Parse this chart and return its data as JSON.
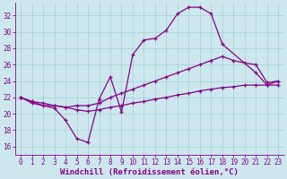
{
  "xlabel": "Windchill (Refroidissement éolien,°C)",
  "bg_color": "#cce8ee",
  "line_color": "#880088",
  "grid_color": "#aad4d8",
  "xlim": [
    -0.5,
    23.5
  ],
  "ylim": [
    15.0,
    33.5
  ],
  "yticks": [
    16,
    18,
    20,
    22,
    24,
    26,
    28,
    30,
    32
  ],
  "xticks": [
    0,
    1,
    2,
    3,
    4,
    5,
    6,
    7,
    8,
    9,
    10,
    11,
    12,
    13,
    14,
    15,
    16,
    17,
    18,
    19,
    20,
    21,
    22,
    23
  ],
  "line1_x": [
    0,
    1,
    3,
    4,
    5,
    6,
    7,
    8,
    9,
    10,
    11,
    12,
    13,
    14,
    15,
    16,
    17,
    18,
    21,
    22,
    23
  ],
  "line1_y": [
    22.0,
    21.3,
    20.7,
    19.2,
    17.0,
    16.5,
    21.8,
    24.5,
    20.2,
    27.2,
    29.0,
    29.2,
    30.2,
    32.2,
    33.0,
    33.0,
    32.2,
    28.5,
    25.0,
    23.5,
    24.0
  ],
  "line2_x": [
    0,
    1,
    2,
    3,
    4,
    5,
    6,
    7,
    8,
    9,
    10,
    11,
    12,
    13,
    14,
    15,
    16,
    17,
    18,
    19,
    20,
    21,
    22,
    23
  ],
  "line2_y": [
    22.0,
    21.5,
    21.0,
    21.0,
    20.8,
    21.0,
    21.0,
    21.3,
    22.0,
    22.5,
    23.0,
    23.5,
    24.0,
    24.5,
    25.0,
    25.5,
    26.0,
    26.5,
    27.0,
    26.5,
    26.2,
    26.0,
    23.8,
    24.0
  ],
  "line3_x": [
    0,
    1,
    2,
    3,
    4,
    5,
    6,
    7,
    8,
    9,
    10,
    11,
    12,
    13,
    14,
    15,
    16,
    17,
    18,
    19,
    20,
    21,
    22,
    23
  ],
  "line3_y": [
    22.0,
    21.5,
    21.3,
    21.0,
    20.8,
    20.5,
    20.3,
    20.5,
    20.8,
    21.0,
    21.3,
    21.5,
    21.8,
    22.0,
    22.3,
    22.5,
    22.8,
    23.0,
    23.2,
    23.3,
    23.5,
    23.5,
    23.5,
    23.5
  ],
  "fontsize_tick": 5.5,
  "fontsize_label": 6.5
}
